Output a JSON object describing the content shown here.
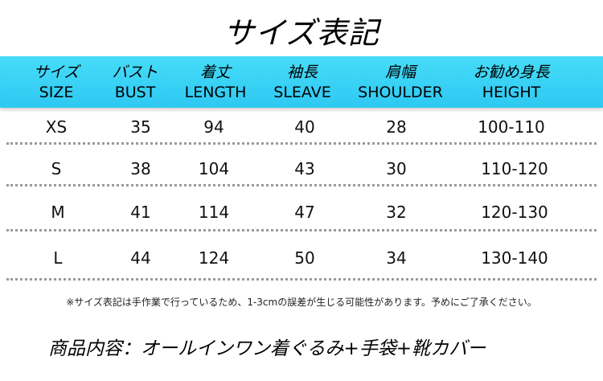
{
  "title": "サイズ表記",
  "header": [
    {
      "jp": "サイズ",
      "en": "SIZE"
    },
    {
      "jp": "バスト",
      "en": "BUST"
    },
    {
      "jp": "着丈",
      "en": "LENGTH"
    },
    {
      "jp": "袖長",
      "en": "SLEAVE"
    },
    {
      "jp": "肩幅",
      "en": "SHOULDER"
    },
    {
      "jp": "お勧め身長",
      "en": "HEIGHT"
    }
  ],
  "rows": [
    [
      "XS",
      "35",
      "94",
      "40",
      "28",
      "100-110"
    ],
    [
      "S",
      "38",
      "104",
      "43",
      "30",
      "110-120"
    ],
    [
      "M",
      "41",
      "114",
      "47",
      "32",
      "120-130"
    ],
    [
      "L",
      "44",
      "124",
      "50",
      "34",
      "130-140"
    ]
  ],
  "note": "※サイズ表記は手作業で行っているため、1-3cmの誤差が生じる可能性があります。予めにご了承ください。",
  "contents": "商品内容：オールインワン着ぐるみ+手袋+靴カバー",
  "colors": {
    "header_bg": "#35cef5",
    "divider": "#9a9a9a"
  }
}
